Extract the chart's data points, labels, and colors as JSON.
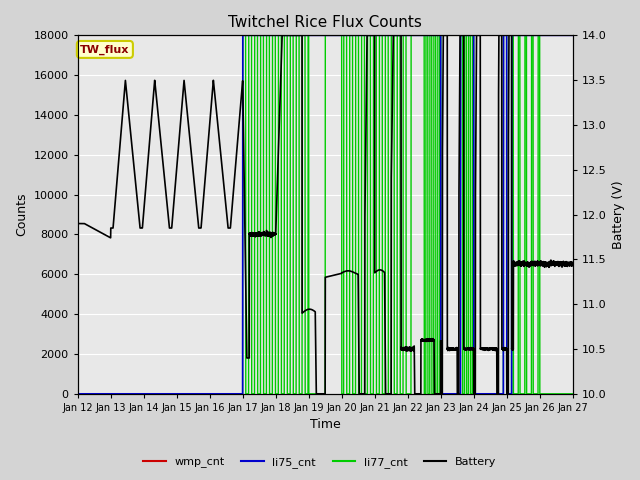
{
  "title": "Twitchel Rice Flux Counts",
  "xlabel": "Time",
  "ylabel_left": "Counts",
  "ylabel_right": "Battery (V)",
  "xlim": [
    0,
    15
  ],
  "ylim_left": [
    0,
    18000
  ],
  "ylim_right": [
    10.0,
    14.0
  ],
  "yticks_left": [
    0,
    2000,
    4000,
    6000,
    8000,
    10000,
    12000,
    14000,
    16000,
    18000
  ],
  "yticks_right": [
    10.0,
    10.5,
    11.0,
    11.5,
    12.0,
    12.5,
    13.0,
    13.5,
    14.0
  ],
  "xtick_labels": [
    "Jan 12",
    "Jan 13",
    "Jan 14",
    "Jan 15",
    "Jan 16",
    "Jan 17",
    "Jan 18",
    "Jan 19",
    "Jan 20",
    "Jan 21",
    "Jan 22",
    "Jan 23",
    "Jan 24",
    "Jan 25",
    "Jan 26",
    "Jan 27"
  ],
  "annotation_text": "TW_flux",
  "annotation_box_color": "#ffffcc",
  "annotation_box_edgecolor": "#cccc00",
  "wmp_color": "#cc0000",
  "li75_color": "#0000cc",
  "li77_color": "#00cc00",
  "battery_color": "#000000",
  "fig_facecolor": "#d4d4d4",
  "plot_facecolor": "#e8e8e8",
  "grid_color": "#ffffff",
  "legend_labels": [
    "wmp_cnt",
    "li75_cnt",
    "li77_cnt",
    "Battery"
  ]
}
